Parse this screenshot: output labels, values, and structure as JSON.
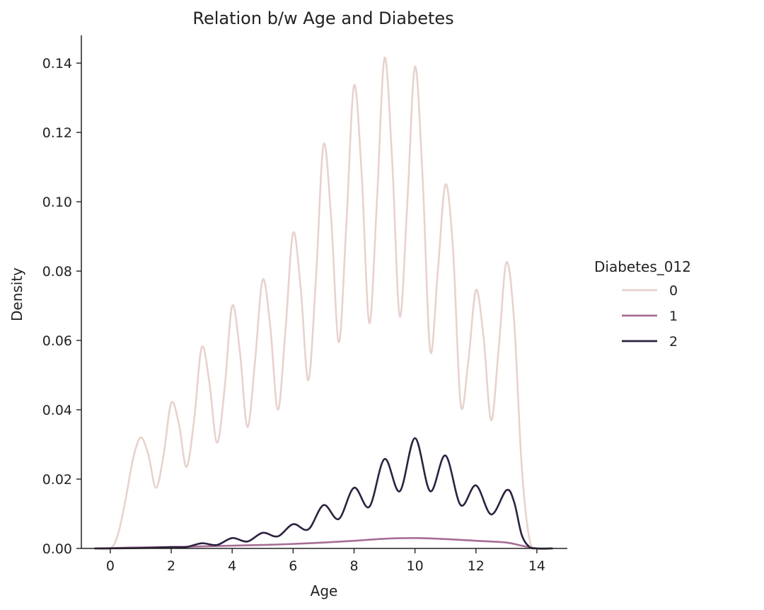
{
  "chart_data": {
    "type": "line",
    "title": "Relation b/w Age and Diabetes",
    "xlabel": "Age",
    "ylabel": "Density",
    "xlim": [
      -0.95,
      15.0
    ],
    "ylim": [
      0,
      0.148
    ],
    "xticks": [
      0,
      2,
      4,
      6,
      8,
      10,
      12,
      14
    ],
    "yticks": [
      0.0,
      0.02,
      0.04,
      0.06,
      0.08,
      0.1,
      0.12,
      0.14
    ],
    "xtick_labels": [
      "0",
      "2",
      "4",
      "6",
      "8",
      "10",
      "12",
      "14"
    ],
    "ytick_labels": [
      "0.00",
      "0.02",
      "0.04",
      "0.06",
      "0.08",
      "0.10",
      "0.12",
      "0.14"
    ],
    "grid": false,
    "legend_position": "right",
    "legend_title": "Diabetes_012",
    "series": [
      {
        "name": "0",
        "color": "#e8d2cd",
        "points": [
          [
            -0.5,
            0.0
          ],
          [
            0.0,
            0.0
          ],
          [
            0.25,
            0.004
          ],
          [
            0.5,
            0.014
          ],
          [
            0.75,
            0.026
          ],
          [
            1.0,
            0.032
          ],
          [
            1.25,
            0.027
          ],
          [
            1.5,
            0.0175
          ],
          [
            1.75,
            0.027
          ],
          [
            2.0,
            0.042
          ],
          [
            2.25,
            0.036
          ],
          [
            2.5,
            0.0235
          ],
          [
            2.75,
            0.037
          ],
          [
            3.0,
            0.058
          ],
          [
            3.25,
            0.048
          ],
          [
            3.5,
            0.0305
          ],
          [
            3.75,
            0.046
          ],
          [
            4.0,
            0.07
          ],
          [
            4.25,
            0.057
          ],
          [
            4.5,
            0.035
          ],
          [
            4.75,
            0.054
          ],
          [
            5.0,
            0.0775
          ],
          [
            5.25,
            0.064
          ],
          [
            5.5,
            0.04
          ],
          [
            5.75,
            0.063
          ],
          [
            6.0,
            0.091
          ],
          [
            6.25,
            0.075
          ],
          [
            6.5,
            0.0485
          ],
          [
            6.75,
            0.078
          ],
          [
            7.0,
            0.1165
          ],
          [
            7.25,
            0.095
          ],
          [
            7.5,
            0.0595
          ],
          [
            7.75,
            0.094
          ],
          [
            8.0,
            0.1335
          ],
          [
            8.25,
            0.108
          ],
          [
            8.5,
            0.065
          ],
          [
            8.75,
            0.1
          ],
          [
            9.0,
            0.1415
          ],
          [
            9.25,
            0.112
          ],
          [
            9.5,
            0.067
          ],
          [
            9.75,
            0.1
          ],
          [
            10.0,
            0.139
          ],
          [
            10.25,
            0.107
          ],
          [
            10.5,
            0.057
          ],
          [
            10.75,
            0.08
          ],
          [
            11.0,
            0.105
          ],
          [
            11.25,
            0.086
          ],
          [
            11.5,
            0.0415
          ],
          [
            11.75,
            0.054
          ],
          [
            12.0,
            0.0745
          ],
          [
            12.25,
            0.061
          ],
          [
            12.5,
            0.037
          ],
          [
            12.75,
            0.058
          ],
          [
            13.0,
            0.0825
          ],
          [
            13.25,
            0.066
          ],
          [
            13.5,
            0.024
          ],
          [
            13.75,
            0.003
          ],
          [
            14.0,
            0.0
          ],
          [
            14.5,
            0.0
          ]
        ]
      },
      {
        "name": "1",
        "color": "#a66d96",
        "points": [
          [
            -0.5,
            0.0
          ],
          [
            0.0,
            0.0001
          ],
          [
            1.0,
            0.0003
          ],
          [
            2.0,
            0.0004
          ],
          [
            3.0,
            0.0006
          ],
          [
            4.0,
            0.0008
          ],
          [
            5.0,
            0.001
          ],
          [
            6.0,
            0.0013
          ],
          [
            7.0,
            0.0017
          ],
          [
            8.0,
            0.0022
          ],
          [
            9.0,
            0.0028
          ],
          [
            10.0,
            0.003
          ],
          [
            11.0,
            0.0027
          ],
          [
            12.0,
            0.0022
          ],
          [
            13.0,
            0.0017
          ],
          [
            13.5,
            0.0008
          ],
          [
            14.0,
            0.0
          ],
          [
            14.5,
            0.0
          ]
        ]
      },
      {
        "name": "2",
        "color": "#2d213f",
        "points": [
          [
            -0.5,
            0.0
          ],
          [
            1.0,
            0.0001
          ],
          [
            2.0,
            0.0004
          ],
          [
            2.5,
            0.0004
          ],
          [
            3.0,
            0.0015
          ],
          [
            3.5,
            0.001
          ],
          [
            4.0,
            0.003
          ],
          [
            4.5,
            0.002
          ],
          [
            5.0,
            0.0045
          ],
          [
            5.5,
            0.0035
          ],
          [
            6.0,
            0.007
          ],
          [
            6.5,
            0.0055
          ],
          [
            7.0,
            0.0125
          ],
          [
            7.5,
            0.0085
          ],
          [
            8.0,
            0.0175
          ],
          [
            8.5,
            0.012
          ],
          [
            9.0,
            0.0258
          ],
          [
            9.5,
            0.0165
          ],
          [
            10.0,
            0.0318
          ],
          [
            10.5,
            0.0165
          ],
          [
            11.0,
            0.0268
          ],
          [
            11.5,
            0.0125
          ],
          [
            12.0,
            0.0182
          ],
          [
            12.5,
            0.0098
          ],
          [
            13.0,
            0.0168
          ],
          [
            13.25,
            0.0135
          ],
          [
            13.5,
            0.004
          ],
          [
            13.75,
            0.0005
          ],
          [
            14.0,
            0.0
          ],
          [
            14.5,
            0.0
          ]
        ]
      }
    ]
  }
}
